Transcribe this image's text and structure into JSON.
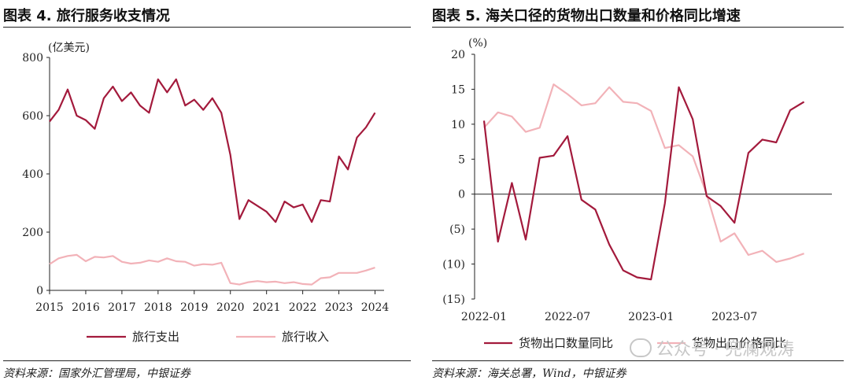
{
  "left": {
    "title": "图表 4. 旅行服务收支情况",
    "source": "资料来源：国家外汇管理局，中银证券",
    "chart_data": {
      "type": "line",
      "ylabel": "(亿美元)",
      "ylim": [
        0,
        800
      ],
      "yticks": [
        0,
        200,
        400,
        600,
        800
      ],
      "xlim": [
        2015,
        2024.25
      ],
      "xticks": [
        "2015",
        "2016",
        "2017",
        "2018",
        "2019",
        "2020",
        "2021",
        "2022",
        "2023",
        "2024"
      ],
      "series": [
        {
          "name": "旅行支出",
          "color": "#a31a3c",
          "x": [
            2015.0,
            2015.25,
            2015.5,
            2015.75,
            2016.0,
            2016.25,
            2016.5,
            2016.75,
            2017.0,
            2017.25,
            2017.5,
            2017.75,
            2018.0,
            2018.25,
            2018.5,
            2018.75,
            2019.0,
            2019.25,
            2019.5,
            2019.75,
            2020.0,
            2020.25,
            2020.5,
            2020.75,
            2021.0,
            2021.25,
            2021.5,
            2021.75,
            2022.0,
            2022.25,
            2022.5,
            2022.75,
            2023.0,
            2023.25,
            2023.5,
            2023.75,
            2024.0
          ],
          "values": [
            580,
            620,
            690,
            600,
            585,
            555,
            660,
            700,
            650,
            680,
            635,
            610,
            725,
            680,
            725,
            635,
            655,
            620,
            660,
            610,
            465,
            245,
            310,
            290,
            270,
            235,
            305,
            285,
            295,
            235,
            310,
            305,
            460,
            415,
            525,
            560,
            610
          ]
        },
        {
          "name": "旅行收入",
          "color": "#f2b2b8",
          "x": [
            2015.0,
            2015.25,
            2015.5,
            2015.75,
            2016.0,
            2016.25,
            2016.5,
            2016.75,
            2017.0,
            2017.25,
            2017.5,
            2017.75,
            2018.0,
            2018.25,
            2018.5,
            2018.75,
            2019.0,
            2019.25,
            2019.5,
            2019.75,
            2020.0,
            2020.25,
            2020.5,
            2020.75,
            2021.0,
            2021.25,
            2021.5,
            2021.75,
            2022.0,
            2022.25,
            2022.5,
            2022.75,
            2023.0,
            2023.25,
            2023.5,
            2023.75,
            2024.0
          ],
          "values": [
            90,
            110,
            118,
            122,
            100,
            115,
            113,
            118,
            98,
            92,
            95,
            103,
            98,
            110,
            100,
            98,
            85,
            90,
            88,
            95,
            25,
            20,
            28,
            32,
            28,
            30,
            25,
            28,
            22,
            20,
            42,
            45,
            60,
            60,
            60,
            68,
            78
          ]
        }
      ],
      "legend": "bottom"
    }
  },
  "right": {
    "title": "图表 5. 海关口径的货物出口数量和价格同比增速",
    "source": "资料来源：海关总署，Wind，中银证券",
    "chart_data": {
      "type": "line",
      "ylabel": "(%)",
      "ylim": [
        -15,
        20
      ],
      "yticks": [
        20,
        15,
        10,
        5,
        0,
        -5,
        -10,
        -15
      ],
      "ytick_labels": [
        "20",
        "15",
        "10",
        "5",
        "0",
        "(5)",
        "(10)",
        "(15)"
      ],
      "xlim": [
        0,
        25
      ],
      "xticks": [
        {
          "x": 0,
          "label": "2022-01"
        },
        {
          "x": 6,
          "label": "2022-07"
        },
        {
          "x": 12,
          "label": "2023-01"
        },
        {
          "x": 18,
          "label": "2023-07"
        }
      ],
      "series": [
        {
          "name": "货物出口数量同比",
          "color": "#a31a3c",
          "x": [
            0,
            1,
            2,
            3,
            4,
            5,
            6,
            7,
            8,
            9,
            10,
            11,
            12,
            13,
            14,
            15,
            16,
            17,
            18,
            19,
            20,
            21,
            22,
            23
          ],
          "values": [
            10.5,
            -6.8,
            1.6,
            -6.5,
            5.2,
            5.5,
            8.3,
            -0.8,
            -2.2,
            -7.2,
            -10.9,
            -11.9,
            -12.2,
            -1.3,
            15.3,
            10.7,
            -0.3,
            -1.7,
            -4.1,
            5.9,
            7.8,
            7.4,
            12.0,
            13.2
          ]
        },
        {
          "name": "货物出口价格同比",
          "color": "#f2b2b8",
          "x": [
            0,
            1,
            2,
            3,
            4,
            5,
            6,
            7,
            8,
            9,
            10,
            11,
            12,
            13,
            14,
            15,
            16,
            17,
            18,
            19,
            20,
            21,
            22,
            23
          ],
          "values": [
            9.5,
            11.7,
            11.1,
            8.9,
            9.5,
            15.7,
            14.3,
            12.7,
            13.0,
            15.3,
            13.2,
            13.0,
            11.9,
            6.6,
            7.0,
            5.4,
            0.0,
            -6.8,
            -5.6,
            -8.7,
            -8.1,
            -9.7,
            -9.2,
            -8.5
          ]
        }
      ],
      "legend": "bottom"
    }
  },
  "watermark": "公众号 · 兜澜观涛"
}
